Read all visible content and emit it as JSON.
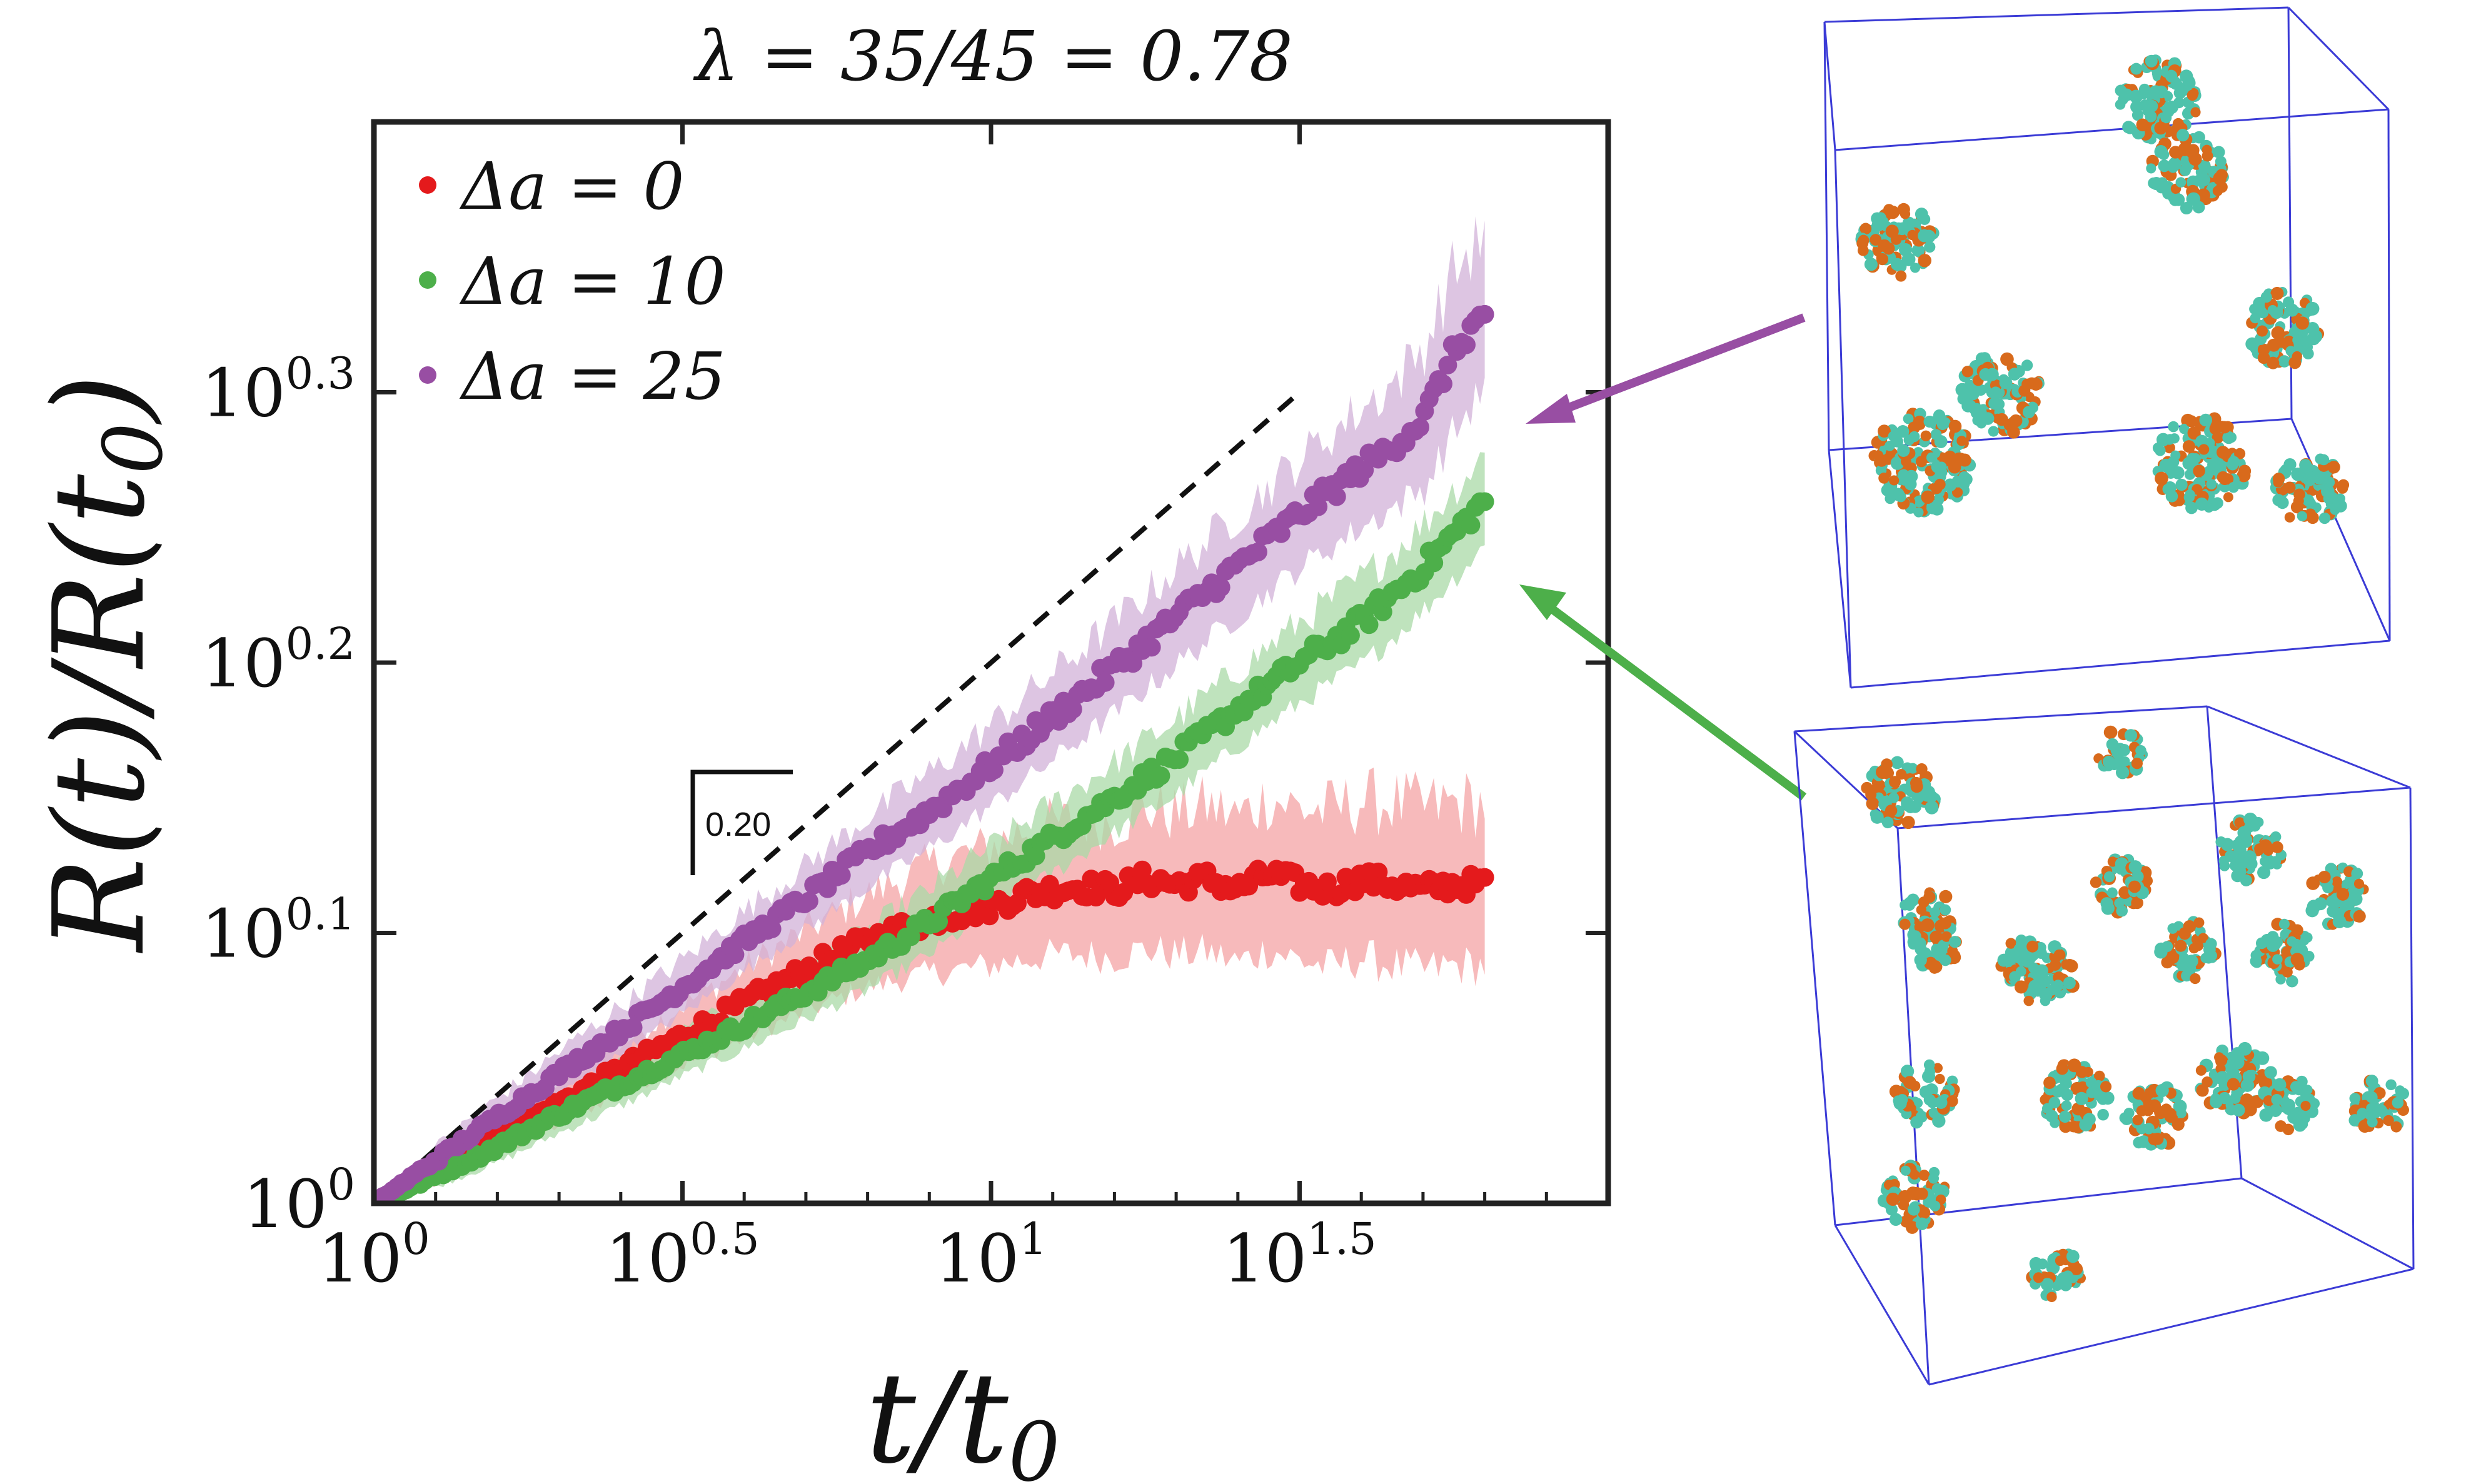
{
  "title": "λ = 35/45 = 0.78",
  "colors": {
    "red": "#e41a1c",
    "red_band": "#f4a3a4",
    "green": "#4daf4a",
    "green_band": "#a9d9a7",
    "purple": "#984ea3",
    "purple_band": "#d2b2d8",
    "box_edge": "#3b3bd6",
    "bead_teal": "#4ec2ab",
    "bead_orange": "#d86a1c"
  },
  "chart_data": {
    "type": "line",
    "title": "λ = 35/45 = 0.78",
    "xlabel": "t/t0",
    "ylabel": "R(t)/R(t0)",
    "x_scale": "log10",
    "y_scale": "log10",
    "xlim_log10": [
      0,
      2.0
    ],
    "ylim_log10": [
      0,
      0.4
    ],
    "xticks": [
      {
        "exp": 0,
        "base": "10",
        "sup": "0"
      },
      {
        "exp": 0.5,
        "base": "10",
        "sup": "0.5"
      },
      {
        "exp": 1,
        "base": "10",
        "sup": "1"
      },
      {
        "exp": 1.5,
        "base": "10",
        "sup": "1.5"
      }
    ],
    "yticks": [
      {
        "exp": 0,
        "base": "10",
        "sup": "0"
      },
      {
        "exp": 0.1,
        "base": "10",
        "sup": "0.1"
      },
      {
        "exp": 0.2,
        "base": "10",
        "sup": "0.2"
      },
      {
        "exp": 0.3,
        "base": "10",
        "sup": "0.3"
      }
    ],
    "series": [
      {
        "name": "Δa = 0",
        "color_key": "red",
        "x_log10": [
          0,
          0.1,
          0.2,
          0.3,
          0.4,
          0.5,
          0.6,
          0.7,
          0.8,
          0.9,
          1.0,
          1.05,
          1.1,
          1.15,
          1.2,
          1.25,
          1.3,
          1.35,
          1.4,
          1.45,
          1.5,
          1.55,
          1.6,
          1.65,
          1.7,
          1.75,
          1.8
        ],
        "y_log10": [
          0,
          0.012,
          0.025,
          0.037,
          0.05,
          0.062,
          0.074,
          0.086,
          0.097,
          0.105,
          0.11,
          0.114,
          0.116,
          0.117,
          0.116,
          0.12,
          0.118,
          0.12,
          0.116,
          0.122,
          0.118,
          0.116,
          0.12,
          0.118,
          0.116,
          0.118,
          0.118
        ],
        "band": [
          0,
          0.005,
          0.007,
          0.008,
          0.009,
          0.011,
          0.013,
          0.015,
          0.017,
          0.02,
          0.022,
          0.024,
          0.024,
          0.025,
          0.025,
          0.026,
          0.026,
          0.027,
          0.027,
          0.028,
          0.028,
          0.029,
          0.029,
          0.03,
          0.03,
          0.03,
          0.03
        ]
      },
      {
        "name": "Δa = 10",
        "color_key": "green",
        "x_log10": [
          0,
          0.1,
          0.2,
          0.3,
          0.4,
          0.5,
          0.6,
          0.7,
          0.8,
          0.9,
          1.0,
          1.1,
          1.2,
          1.3,
          1.4,
          1.5,
          1.6,
          1.7,
          1.8
        ],
        "y_log10": [
          0,
          0.01,
          0.021,
          0.033,
          0.044,
          0.055,
          0.066,
          0.078,
          0.09,
          0.104,
          0.12,
          0.135,
          0.15,
          0.165,
          0.183,
          0.2,
          0.215,
          0.235,
          0.26
        ],
        "band": [
          0,
          0.004,
          0.006,
          0.007,
          0.008,
          0.008,
          0.009,
          0.01,
          0.011,
          0.012,
          0.012,
          0.013,
          0.013,
          0.014,
          0.014,
          0.015,
          0.016,
          0.016,
          0.017
        ]
      },
      {
        "name": "Δa = 25",
        "color_key": "purple",
        "x_log10": [
          0,
          0.1,
          0.2,
          0.3,
          0.4,
          0.5,
          0.6,
          0.7,
          0.8,
          0.9,
          1.0,
          1.1,
          1.2,
          1.3,
          1.4,
          1.5,
          1.6,
          1.65,
          1.7,
          1.75,
          1.8
        ],
        "y_log10": [
          0,
          0.016,
          0.032,
          0.048,
          0.064,
          0.08,
          0.097,
          0.113,
          0.13,
          0.145,
          0.162,
          0.18,
          0.198,
          0.217,
          0.236,
          0.255,
          0.272,
          0.28,
          0.29,
          0.315,
          0.33
        ],
        "band": [
          0,
          0.005,
          0.007,
          0.008,
          0.009,
          0.01,
          0.011,
          0.012,
          0.013,
          0.014,
          0.015,
          0.016,
          0.017,
          0.018,
          0.019,
          0.02,
          0.022,
          0.023,
          0.026,
          0.03,
          0.028
        ]
      }
    ],
    "reference_line": {
      "style": "dashed",
      "slope": 0.2,
      "x_log10": [
        0,
        1.5
      ],
      "y_log10": [
        0,
        0.3
      ],
      "label": "0.20"
    },
    "legend_placement": "top-left",
    "annotations": [
      {
        "type": "arrow",
        "from": "upper-simulation-box",
        "to_series": "Δa = 25",
        "color_key": "purple"
      },
      {
        "type": "arrow",
        "from": "lower-simulation-box",
        "to_series": "Δa = 10",
        "color_key": "green"
      }
    ]
  }
}
